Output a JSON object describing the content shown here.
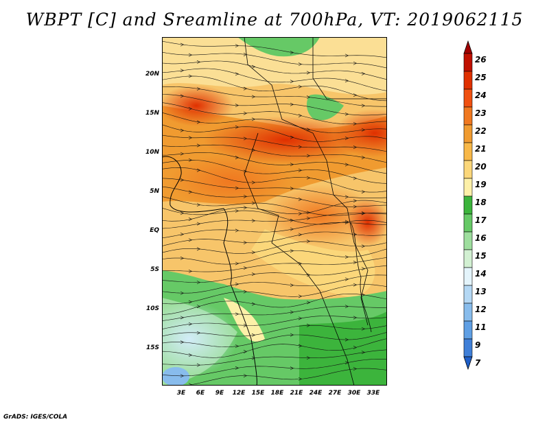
{
  "title": "WBPT [C] and Sreamline at 700hPa, VT: 2019062115",
  "lat_labels": [
    "20N",
    "15N",
    "10N",
    "5N",
    "EQ",
    "5S",
    "10S",
    "15S"
  ],
  "lon_labels": [
    "3E",
    "6E",
    "9E",
    "12E",
    "15E",
    "18E",
    "21E",
    "24E",
    "27E",
    "30E",
    "33E"
  ],
  "colorbar": {
    "labels": [
      "26",
      "25",
      "24",
      "23",
      "22",
      "21",
      "20",
      "19",
      "18",
      "17",
      "16",
      "15",
      "14",
      "13",
      "12",
      "11",
      "9",
      "7"
    ],
    "colors": [
      "#a00000",
      "#c01000",
      "#e03000",
      "#f05010",
      "#f07820",
      "#f09b30",
      "#f8b848",
      "#fbd77a",
      "#fdf0a8",
      "#3cb43c",
      "#66c966",
      "#9ede9e",
      "#d2f0d2",
      "#e4f4fb",
      "#b4d8f4",
      "#88bcec",
      "#5f9fe4",
      "#3f7fd8",
      "#1f5fc8"
    ]
  },
  "footer": "GrADS: IGES/COLA"
}
